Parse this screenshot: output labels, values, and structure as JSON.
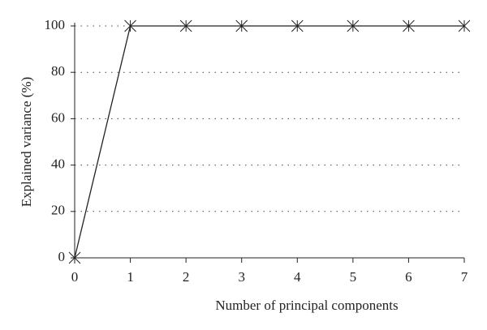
{
  "chart_data": {
    "type": "line",
    "xlabel": "Number of principal components",
    "ylabel": "Explained variance (%)",
    "x": [
      0,
      1,
      2,
      3,
      4,
      5,
      6,
      7
    ],
    "values": [
      0,
      100,
      100,
      100,
      100,
      100,
      100,
      100
    ],
    "color": "#222222",
    "xlim": [
      0,
      7
    ],
    "xticks": [
      0,
      1,
      2,
      3,
      4,
      5,
      6,
      7
    ],
    "ylim": [
      0,
      100
    ],
    "yticks": [
      0,
      20,
      40,
      60,
      80,
      100
    ],
    "grid": true
  }
}
